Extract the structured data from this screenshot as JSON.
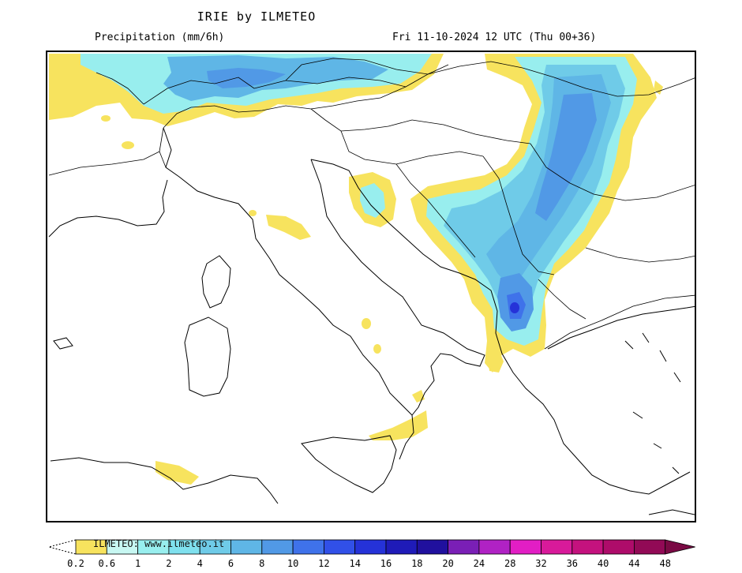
{
  "header": {
    "title": "IRIE by ILMETEO",
    "variable": "Precipitation (mm/6h)",
    "valid_time": "Fri 11-10-2024 12 UTC (Thu 00+36)"
  },
  "legend": {
    "credit": "ILMETEO: www.ilmeteo.it",
    "ticks": [
      "0.2",
      "0.6",
      "1",
      "2",
      "4",
      "6",
      "8",
      "10",
      "12",
      "14",
      "16",
      "18",
      "20",
      "24",
      "28",
      "32",
      "36",
      "40",
      "44",
      "48"
    ],
    "colors": [
      "#f7e35e",
      "#c7f7f2",
      "#98eeee",
      "#7fe0ee",
      "#6fcbe8",
      "#5fb6e6",
      "#5199e6",
      "#3f72ea",
      "#3150e8",
      "#2532d8",
      "#1f1bb8",
      "#20109e",
      "#7a1fb6",
      "#b022c4",
      "#e21ec4",
      "#d81a9a",
      "#c4127e",
      "#ae0c6a",
      "#920a56",
      "#7a0a44"
    ]
  },
  "map": {
    "region": "Italy and the Balkans",
    "colors": {
      "light": "#f7e35e",
      "very_light": "#c7f7f2",
      "light_cyan": "#98eeee",
      "cyan": "#7fe0ee",
      "blue_light": "#6fcbe8",
      "blue": "#5fb6e6",
      "blue_mid": "#5199e6",
      "blue_dark": "#3f72ea",
      "peak": "#2532d8",
      "border": "#000000"
    }
  }
}
